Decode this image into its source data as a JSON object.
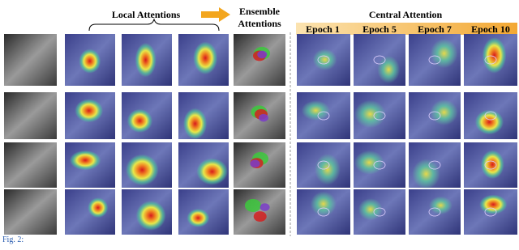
{
  "figure": {
    "local_title": "Local Attentions",
    "ensemble_title": [
      "Ensemble",
      "Attentions"
    ],
    "central_title": "Central Attention",
    "epochs": [
      "Epoch 1",
      "Epoch 5",
      "Epoch 7",
      "Epoch 10"
    ],
    "caption_label": "Fig. 2:"
  }
}
